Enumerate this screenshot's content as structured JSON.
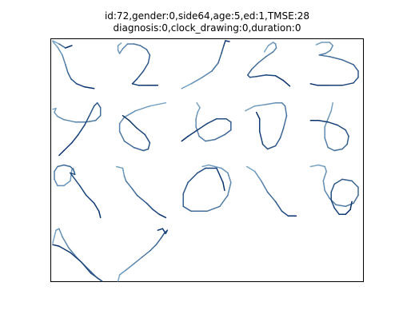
{
  "title": {
    "line1": "id:72,gender:0,side64,age:5,ed:1,TMSE:28",
    "line2": "diagnosis:0,clock_drawing:0,duration:0"
  },
  "chart_data": {
    "type": "line",
    "title": "id:72,gender:0,side64,age:5,ed:1,TMSE:28 diagnosis:0,clock_drawing:0,duration:0",
    "xlabel": "",
    "ylabel": "",
    "axes_visible": false,
    "xlim": [
      0,
      392
    ],
    "ylim": [
      304,
      0
    ],
    "colormap": "Blues",
    "description_values": "Handwritten digit strokes; each stroke is a polyline of pen points in data units; color goes from light to dark along the stroke.",
    "strokes": [
      {
        "name": "digit-1",
        "points": [
          [
            2,
            2
          ],
          [
            10,
            6
          ],
          [
            18,
            11
          ],
          [
            26,
            8
          ]
        ]
      },
      {
        "name": "digit-1b",
        "points": [
          [
            2,
            3
          ],
          [
            8,
            10
          ],
          [
            14,
            20
          ],
          [
            18,
            32
          ],
          [
            21,
            42
          ],
          [
            25,
            50
          ],
          [
            32,
            56
          ],
          [
            42,
            60
          ],
          [
            54,
            62
          ]
        ]
      },
      {
        "name": "digit-2",
        "points": [
          [
            88,
            5
          ],
          [
            84,
            8
          ],
          [
            84,
            14
          ],
          [
            86,
            18
          ],
          [
            90,
            12
          ],
          [
            96,
            6
          ],
          [
            104,
            6
          ],
          [
            112,
            8
          ],
          [
            120,
            13
          ],
          [
            124,
            20
          ],
          [
            122,
            30
          ],
          [
            116,
            40
          ],
          [
            108,
            50
          ],
          [
            102,
            56
          ],
          [
            110,
            58
          ],
          [
            122,
            58
          ],
          [
            134,
            58
          ]
        ]
      },
      {
        "name": "digit-3",
        "points": [
          [
            164,
            62
          ],
          [
            176,
            56
          ],
          [
            190,
            48
          ],
          [
            202,
            40
          ],
          [
            210,
            30
          ],
          [
            214,
            18
          ],
          [
            217,
            8
          ],
          [
            219,
            2
          ],
          [
            224,
            3
          ]
        ]
      },
      {
        "name": "digit-4",
        "points": [
          [
            268,
            16
          ],
          [
            273,
            8
          ],
          [
            279,
            4
          ],
          [
            282,
            6
          ],
          [
            283,
            11
          ],
          [
            279,
            16
          ],
          [
            270,
            22
          ],
          [
            260,
            30
          ],
          [
            252,
            38
          ],
          [
            247,
            45
          ],
          [
            250,
            48
          ],
          [
            258,
            47
          ],
          [
            270,
            45
          ],
          [
            282,
            46
          ],
          [
            292,
            52
          ],
          [
            300,
            59
          ]
        ]
      },
      {
        "name": "digit-5",
        "points": [
          [
            333,
            7
          ],
          [
            340,
            4
          ],
          [
            350,
            4
          ],
          [
            354,
            8
          ],
          [
            351,
            14
          ],
          [
            345,
            18
          ],
          [
            337,
            20
          ],
          [
            350,
            22
          ],
          [
            366,
            26
          ],
          [
            380,
            32
          ],
          [
            386,
            40
          ],
          [
            386,
            48
          ],
          [
            380,
            55
          ],
          [
            366,
            58
          ],
          [
            350,
            58
          ],
          [
            335,
            58
          ],
          [
            326,
            56
          ]
        ]
      },
      {
        "name": "digit-6",
        "points": [
          [
            2,
            88
          ],
          [
            6,
            87
          ],
          [
            4,
            92
          ],
          [
            8,
            97
          ],
          [
            16,
            101
          ],
          [
            30,
            104
          ],
          [
            44,
            104
          ],
          [
            56,
            102
          ],
          [
            62,
            96
          ],
          [
            62,
            86
          ],
          [
            58,
            80
          ],
          [
            54,
            84
          ],
          [
            48,
            96
          ],
          [
            42,
            108
          ],
          [
            34,
            120
          ],
          [
            26,
            130
          ],
          [
            16,
            140
          ],
          [
            10,
            146
          ]
        ]
      },
      {
        "name": "digit-7",
        "points": [
          [
            144,
            80
          ],
          [
            124,
            84
          ],
          [
            106,
            90
          ],
          [
            92,
            98
          ],
          [
            86,
            106
          ],
          [
            86,
            116
          ],
          [
            92,
            128
          ],
          [
            104,
            136
          ],
          [
            116,
            140
          ],
          [
            122,
            138
          ],
          [
            124,
            130
          ],
          [
            118,
            120
          ],
          [
            108,
            112
          ],
          [
            98,
            102
          ],
          [
            90,
            96
          ]
        ]
      },
      {
        "name": "digit-8",
        "points": [
          [
            183,
            80
          ],
          [
            187,
            86
          ],
          [
            184,
            92
          ],
          [
            182,
            100
          ],
          [
            182,
            110
          ],
          [
            186,
            122
          ],
          [
            194,
            128
          ],
          [
            206,
            126
          ],
          [
            218,
            120
          ],
          [
            226,
            114
          ],
          [
            226,
            104
          ],
          [
            220,
            100
          ],
          [
            208,
            100
          ],
          [
            196,
            106
          ],
          [
            184,
            114
          ],
          [
            172,
            122
          ],
          [
            164,
            128
          ]
        ]
      },
      {
        "name": "digit-9",
        "points": [
          [
            244,
            90
          ],
          [
            256,
            84
          ],
          [
            270,
            82
          ],
          [
            282,
            80
          ],
          [
            290,
            80
          ],
          [
            294,
            84
          ],
          [
            296,
            96
          ],
          [
            292,
            112
          ],
          [
            288,
            124
          ],
          [
            282,
            134
          ],
          [
            272,
            138
          ],
          [
            266,
            132
          ],
          [
            262,
            116
          ],
          [
            262,
            100
          ],
          [
            258,
            92
          ]
        ]
      },
      {
        "name": "digit-10",
        "points": [
          [
            354,
            80
          ],
          [
            352,
            90
          ],
          [
            348,
            100
          ],
          [
            344,
            110
          ],
          [
            344,
            124
          ],
          [
            348,
            136
          ],
          [
            356,
            140
          ],
          [
            366,
            138
          ],
          [
            372,
            132
          ],
          [
            374,
            122
          ],
          [
            370,
            114
          ],
          [
            360,
            108
          ],
          [
            348,
            104
          ],
          [
            336,
            102
          ],
          [
            326,
            102
          ]
        ]
      },
      {
        "name": "digit-11",
        "points": [
          [
            28,
            162
          ],
          [
            26,
            164
          ],
          [
            24,
            178
          ],
          [
            16,
            184
          ],
          [
            8,
            184
          ],
          [
            4,
            176
          ],
          [
            4,
            166
          ],
          [
            8,
            160
          ],
          [
            16,
            158
          ],
          [
            24,
            160
          ],
          [
            28,
            164
          ],
          [
            30,
            170
          ],
          [
            24,
            168
          ],
          [
            36,
            184
          ],
          [
            44,
            196
          ],
          [
            54,
            206
          ],
          [
            60,
            216
          ],
          [
            62,
            224
          ]
        ]
      },
      {
        "name": "digit-12",
        "points": [
          [
            82,
            160
          ],
          [
            90,
            162
          ],
          [
            92,
            172
          ],
          [
            94,
            178
          ],
          [
            102,
            188
          ],
          [
            108,
            196
          ],
          [
            120,
            206
          ],
          [
            128,
            214
          ],
          [
            136,
            220
          ],
          [
            144,
            224
          ]
        ]
      },
      {
        "name": "digit-13",
        "points": [
          [
            190,
            160
          ],
          [
            198,
            158
          ],
          [
            214,
            162
          ],
          [
            222,
            168
          ],
          [
            226,
            180
          ],
          [
            222,
            196
          ],
          [
            212,
            210
          ],
          [
            196,
            216
          ],
          [
            176,
            216
          ],
          [
            166,
            210
          ],
          [
            166,
            194
          ],
          [
            172,
            180
          ],
          [
            184,
            168
          ],
          [
            194,
            162
          ],
          [
            208,
            162
          ],
          [
            216,
            180
          ],
          [
            218,
            190
          ]
        ]
      },
      {
        "name": "digit-14",
        "points": [
          [
            246,
            160
          ],
          [
            256,
            166
          ],
          [
            264,
            178
          ],
          [
            272,
            192
          ],
          [
            282,
            204
          ],
          [
            290,
            216
          ],
          [
            298,
            222
          ],
          [
            308,
            222
          ]
        ]
      },
      {
        "name": "digit-15",
        "points": [
          [
            326,
            160
          ],
          [
            336,
            158
          ],
          [
            344,
            160
          ],
          [
            346,
            166
          ],
          [
            342,
            178
          ],
          [
            344,
            190
          ],
          [
            350,
            200
          ],
          [
            358,
            208
          ],
          [
            370,
            210
          ],
          [
            380,
            206
          ],
          [
            386,
            196
          ],
          [
            386,
            186
          ],
          [
            378,
            178
          ],
          [
            366,
            176
          ],
          [
            356,
            182
          ],
          [
            352,
            192
          ],
          [
            352,
            202
          ],
          [
            356,
            212
          ],
          [
            362,
            220
          ],
          [
            370,
            220
          ],
          [
            376,
            214
          ],
          [
            378,
            204
          ]
        ]
      },
      {
        "name": "digit-16",
        "points": [
          [
            2,
            256
          ],
          [
            6,
            240
          ],
          [
            10,
            238
          ],
          [
            14,
            248
          ],
          [
            22,
            262
          ],
          [
            32,
            274
          ],
          [
            42,
            284
          ],
          [
            50,
            292
          ],
          [
            58,
            300
          ],
          [
            64,
            304
          ],
          [
            50,
            294
          ],
          [
            38,
            280
          ],
          [
            24,
            268
          ],
          [
            10,
            260
          ],
          [
            2,
            258
          ]
        ]
      },
      {
        "name": "digit-17",
        "points": [
          [
            84,
            304
          ],
          [
            86,
            296
          ],
          [
            94,
            290
          ],
          [
            104,
            282
          ],
          [
            114,
            274
          ],
          [
            124,
            266
          ],
          [
            132,
            258
          ],
          [
            138,
            250
          ],
          [
            142,
            244
          ],
          [
            146,
            240
          ],
          [
            144,
            244
          ],
          [
            140,
            238
          ],
          [
            134,
            240
          ]
        ]
      }
    ]
  }
}
